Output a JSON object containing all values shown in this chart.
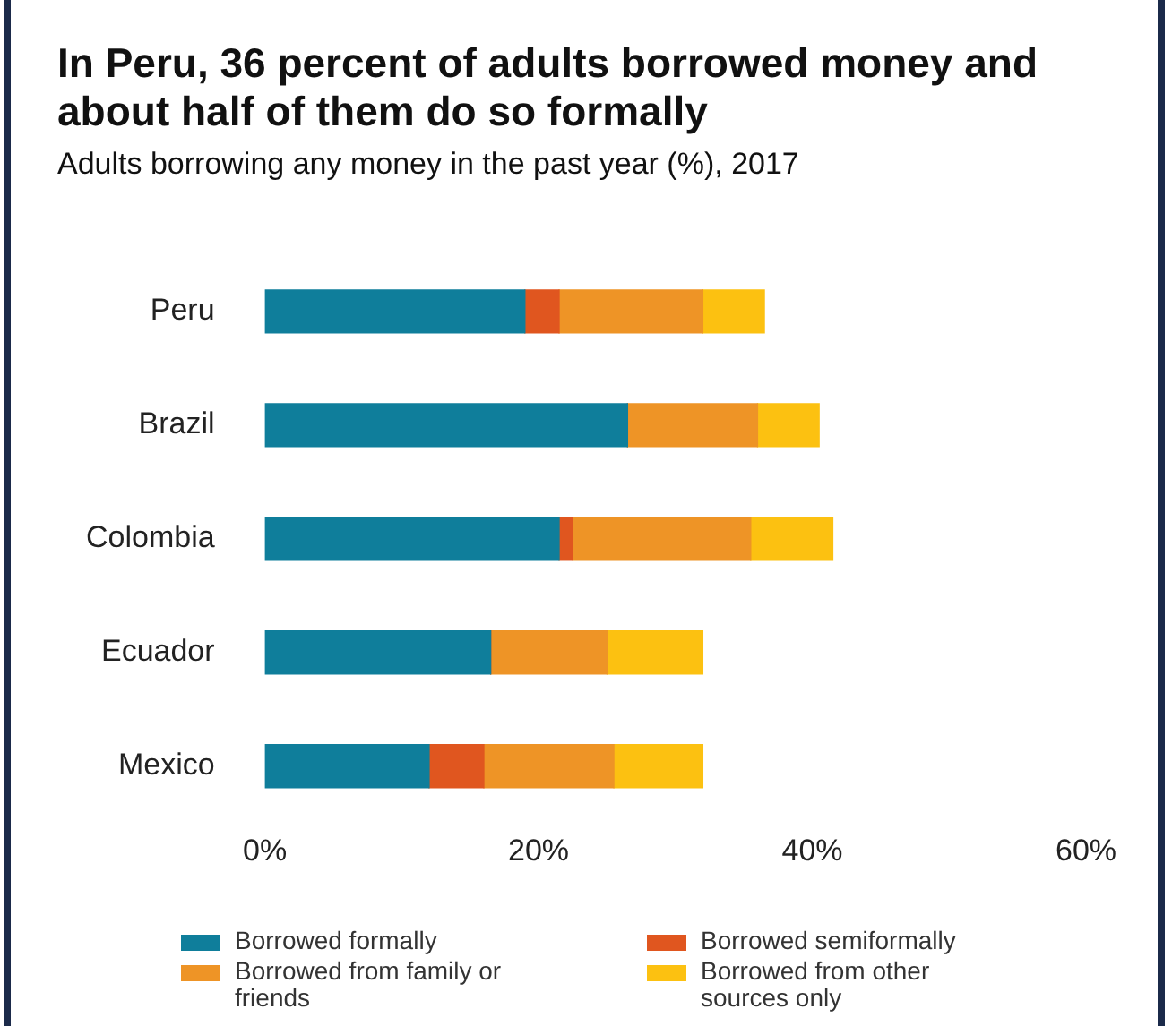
{
  "chart_data": {
    "type": "bar",
    "orientation": "horizontal",
    "stacked": true,
    "title": "In Peru, 36 percent of adults borrowed money and about half of them do so formally",
    "subtitle": "Adults borrowing any money in the past year (%), 2017",
    "categories": [
      "Peru",
      "Brazil",
      "Colombia",
      "Ecuador",
      "Mexico"
    ],
    "series": [
      {
        "name": "Borrowed formally",
        "color": "#0f7e9b",
        "values": [
          19,
          26.5,
          21.5,
          16.5,
          12
        ]
      },
      {
        "name": "Borrowed semiformally",
        "color": "#e0561f",
        "values": [
          2.5,
          0,
          1,
          0,
          4
        ]
      },
      {
        "name": "Borrowed from family or friends",
        "color": "#ee9426",
        "values": [
          10.5,
          9.5,
          13,
          8.5,
          9.5
        ]
      },
      {
        "name": "Borrowed from other sources only",
        "color": "#fcc111",
        "values": [
          4.5,
          4.5,
          6,
          7,
          6.5
        ]
      }
    ],
    "xlim": [
      0,
      60
    ],
    "xticks": [
      {
        "value": 0,
        "label": "0%"
      },
      {
        "value": 20,
        "label": "20%"
      },
      {
        "value": 40,
        "label": "40%"
      },
      {
        "value": 60,
        "label": "60%"
      }
    ],
    "grid": false,
    "legend": "bottom"
  }
}
